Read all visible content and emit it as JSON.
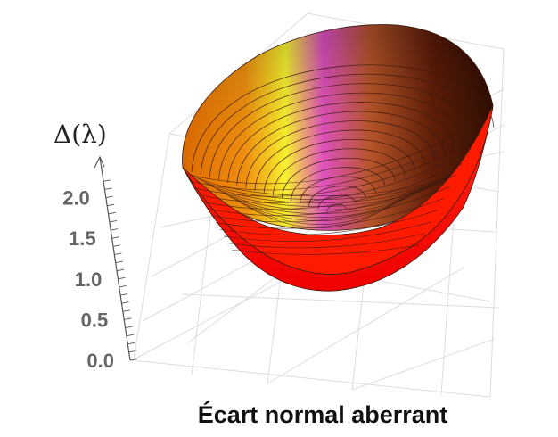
{
  "chart_data": {
    "type": "surface3d",
    "surface": "bowl",
    "zlabel": "Δ(λ)",
    "xlabel": "Écart normal aberrant",
    "z_ticks": [
      "0.0",
      "0.5",
      "1.0",
      "1.5",
      "2.0"
    ],
    "z_tick_values": [
      0.0,
      0.5,
      1.0,
      1.5,
      2.0
    ],
    "zlim": [
      0.0,
      2.5
    ],
    "grid": true,
    "colors": {
      "low": "#ff0000",
      "mid": "#ff8a00",
      "high_yellow": "#ffff33",
      "high_magenta": "#dd44cc",
      "dark": "#3a0f04",
      "mesh_line": "#3a1a10",
      "grid": "#dddddd",
      "axis": "#555555"
    }
  }
}
